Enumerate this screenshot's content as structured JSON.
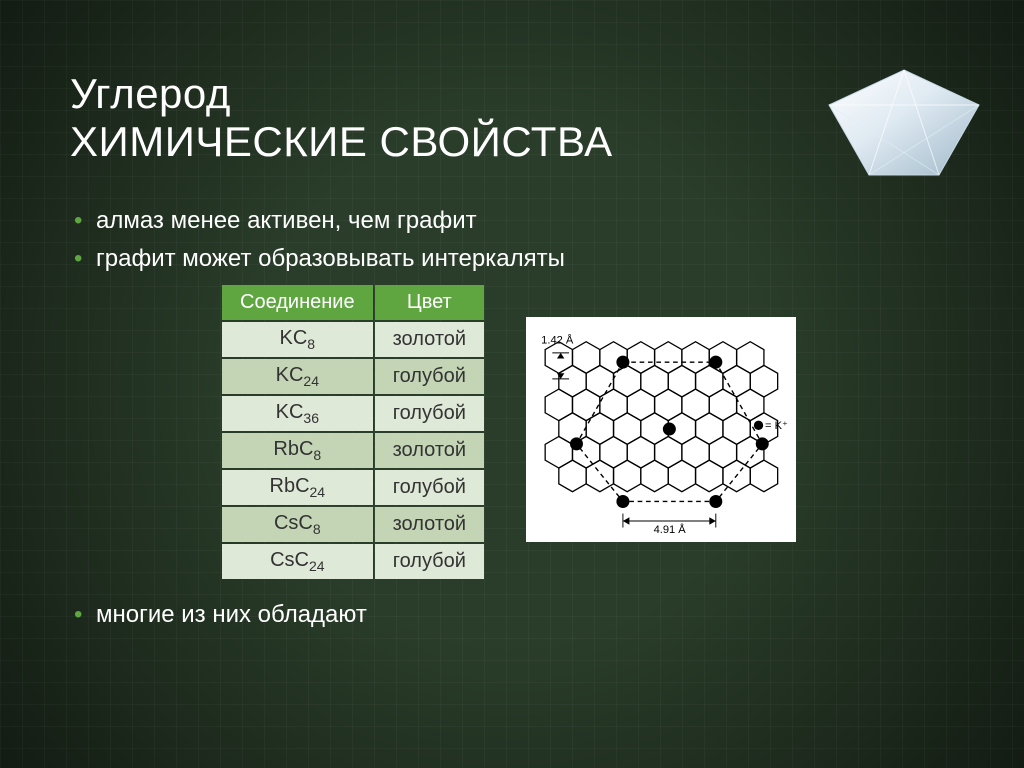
{
  "slide": {
    "title_line1": "Углерод",
    "title_line2": "ХИМИЧЕСКИЕ СВОЙСТВА",
    "bullet1": "алмаз менее активен, чем графит",
    "bullet2": "графит может образовывать интеркаляты",
    "bullet3": "многие из них обладают"
  },
  "table": {
    "header_compound": "Соединение",
    "header_color": "Цвет",
    "rows": [
      {
        "compound_base": "KC",
        "compound_sub": "8",
        "color": "золотой"
      },
      {
        "compound_base": "KC",
        "compound_sub": "24",
        "color": "голубой"
      },
      {
        "compound_base": "KC",
        "compound_sub": "36",
        "color": "голубой"
      },
      {
        "compound_base": "RbC",
        "compound_sub": "8",
        "color": "золотой"
      },
      {
        "compound_base": "RbC",
        "compound_sub": "24",
        "color": "голубой"
      },
      {
        "compound_base": "CsC",
        "compound_sub": "8",
        "color": "золотой"
      },
      {
        "compound_base": "CsC",
        "compound_sub": "24",
        "color": "голубой"
      }
    ],
    "row_light_bg": "#dfe9d7",
    "row_dark_bg": "#c4d5b6",
    "header_bg": "#5fa641"
  },
  "diagram": {
    "type": "hex-lattice",
    "label_top": "1.42 Å",
    "label_bottom": "4.91 Å",
    "legend_symbol": "●",
    "legend_text": " = K⁺",
    "stroke_color": "#000000",
    "fill_color": "#000000",
    "bg": "#ffffff",
    "label_fontsize": 12,
    "hex_rows": 4,
    "hex_cols": 5
  },
  "colors": {
    "slide_bg": "#2a3d2a",
    "accent": "#5fa641",
    "text": "#ffffff",
    "table_text": "#333333"
  },
  "typography": {
    "title_fontsize": 42,
    "bullet_fontsize": 24,
    "table_fontsize": 20
  }
}
